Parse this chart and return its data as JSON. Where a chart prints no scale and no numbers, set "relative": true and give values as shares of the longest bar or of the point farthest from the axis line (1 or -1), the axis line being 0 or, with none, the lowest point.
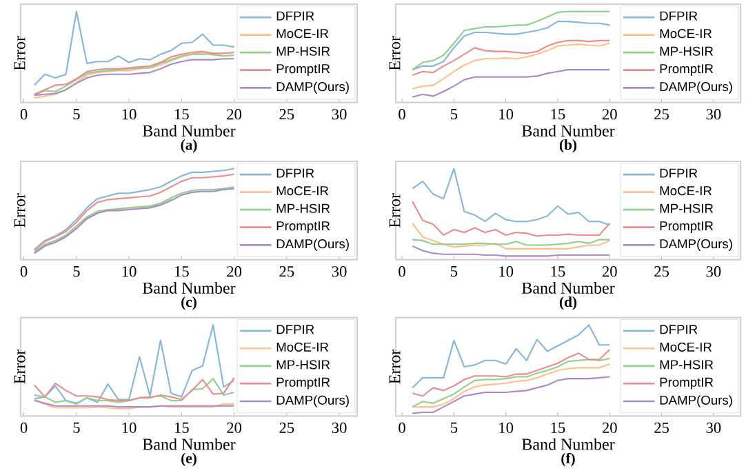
{
  "chart_data": [
    {
      "type": "line",
      "title": "(a)",
      "xlabel": "Band Number",
      "ylabel": "Error",
      "relative": true,
      "legend": "top right",
      "xlim": [
        -0.3,
        31.7
      ],
      "xticks": [
        0,
        5,
        10,
        15,
        20,
        25,
        30
      ],
      "x": [
        1,
        2,
        3,
        4,
        5,
        6,
        7,
        8,
        9,
        10,
        11,
        12,
        13,
        14,
        15,
        16,
        17,
        18,
        19,
        20
      ],
      "series": [
        {
          "name": "DFPIR",
          "color": "#86b6da",
          "values": [
            0.19,
            0.31,
            0.27,
            0.31,
            1.0,
            0.43,
            0.45,
            0.45,
            0.51,
            0.44,
            0.48,
            0.47,
            0.53,
            0.57,
            0.65,
            0.66,
            0.75,
            0.63,
            0.63,
            0.61
          ]
        },
        {
          "name": "MoCE-IR",
          "color": "#ffc08a",
          "values": [
            0.05,
            0.07,
            0.09,
            0.14,
            0.22,
            0.3,
            0.33,
            0.34,
            0.35,
            0.35,
            0.37,
            0.38,
            0.41,
            0.46,
            0.5,
            0.53,
            0.55,
            0.52,
            0.51,
            0.52
          ]
        },
        {
          "name": "MP-HSIR",
          "color": "#8fd08f",
          "values": [
            0.08,
            0.13,
            0.12,
            0.18,
            0.25,
            0.32,
            0.34,
            0.35,
            0.36,
            0.37,
            0.38,
            0.38,
            0.43,
            0.47,
            0.51,
            0.53,
            0.53,
            0.53,
            0.51,
            0.52
          ]
        },
        {
          "name": "PromptIR",
          "color": "#ec8c8c",
          "values": [
            0.09,
            0.14,
            0.19,
            0.2,
            0.26,
            0.34,
            0.36,
            0.37,
            0.37,
            0.38,
            0.39,
            0.4,
            0.44,
            0.5,
            0.53,
            0.55,
            0.56,
            0.54,
            0.54,
            0.55
          ]
        },
        {
          "name": "DAMP(Ours)",
          "color": "#a98bcb",
          "values": [
            0.08,
            0.09,
            0.1,
            0.14,
            0.21,
            0.27,
            0.3,
            0.31,
            0.31,
            0.31,
            0.32,
            0.33,
            0.37,
            0.42,
            0.45,
            0.47,
            0.47,
            0.47,
            0.48,
            0.48
          ]
        }
      ]
    },
    {
      "type": "line",
      "title": "(b)",
      "xlabel": "Band Number",
      "ylabel": "Error",
      "relative": true,
      "legend": "top right",
      "xlim": [
        -0.6,
        32.6
      ],
      "xticks": [
        0,
        5,
        10,
        15,
        20,
        25,
        30
      ],
      "x": [
        1,
        2,
        3,
        4,
        5,
        6,
        7,
        8,
        9,
        10,
        11,
        12,
        13,
        14,
        15,
        16,
        17,
        18,
        19,
        20
      ],
      "series": [
        {
          "name": "DFPIR",
          "color": "#86b6da",
          "values": [
            0.36,
            0.4,
            0.4,
            0.45,
            0.6,
            0.73,
            0.77,
            0.77,
            0.76,
            0.75,
            0.75,
            0.77,
            0.79,
            0.82,
            0.89,
            0.89,
            0.88,
            0.87,
            0.87,
            0.85
          ]
        },
        {
          "name": "MoCE-IR",
          "color": "#ffc08a",
          "values": [
            0.15,
            0.18,
            0.19,
            0.26,
            0.34,
            0.41,
            0.46,
            0.48,
            0.48,
            0.49,
            0.48,
            0.5,
            0.53,
            0.57,
            0.62,
            0.63,
            0.64,
            0.63,
            0.62,
            0.65
          ]
        },
        {
          "name": "MP-HSIR",
          "color": "#8fd08f",
          "values": [
            0.36,
            0.44,
            0.46,
            0.52,
            0.65,
            0.79,
            0.81,
            0.83,
            0.83,
            0.84,
            0.85,
            0.85,
            0.89,
            0.94,
            0.99,
            1.0,
            1.0,
            1.0,
            1.0,
            1.0
          ]
        },
        {
          "name": "PromptIR",
          "color": "#ec8c8c",
          "values": [
            0.3,
            0.34,
            0.33,
            0.4,
            0.46,
            0.53,
            0.6,
            0.57,
            0.56,
            0.56,
            0.55,
            0.54,
            0.56,
            0.62,
            0.66,
            0.68,
            0.68,
            0.67,
            0.68,
            0.68
          ]
        },
        {
          "name": "DAMP(Ours)",
          "color": "#a98bcb",
          "values": [
            0.06,
            0.09,
            0.07,
            0.12,
            0.18,
            0.25,
            0.28,
            0.28,
            0.28,
            0.28,
            0.28,
            0.28,
            0.29,
            0.32,
            0.34,
            0.36,
            0.36,
            0.36,
            0.36,
            0.36
          ]
        }
      ]
    },
    {
      "type": "line",
      "title": "(c)",
      "xlabel": "Band Number",
      "ylabel": "Error",
      "relative": true,
      "legend": "top right",
      "xlim": [
        -0.3,
        31.7
      ],
      "xticks": [
        0,
        5,
        10,
        15,
        20,
        25,
        30
      ],
      "x": [
        1,
        2,
        3,
        4,
        5,
        6,
        7,
        8,
        9,
        10,
        11,
        12,
        13,
        14,
        15,
        16,
        17,
        18,
        19,
        20
      ],
      "series": [
        {
          "name": "DFPIR",
          "color": "#86b6da",
          "values": [
            0.11,
            0.21,
            0.26,
            0.33,
            0.44,
            0.57,
            0.67,
            0.7,
            0.73,
            0.73,
            0.75,
            0.77,
            0.8,
            0.86,
            0.92,
            0.96,
            0.96,
            0.97,
            0.98,
            1.0
          ]
        },
        {
          "name": "MoCE-IR",
          "color": "#ffc08a",
          "values": [
            0.08,
            0.16,
            0.2,
            0.26,
            0.35,
            0.46,
            0.52,
            0.54,
            0.55,
            0.56,
            0.57,
            0.58,
            0.61,
            0.66,
            null,
            null,
            null,
            null,
            null,
            null
          ]
        },
        {
          "name": "MP-HSIR",
          "color": "#8fd08f",
          "values": [
            0.09,
            0.17,
            0.21,
            0.27,
            0.37,
            0.47,
            0.53,
            0.55,
            0.56,
            0.57,
            0.58,
            0.59,
            0.62,
            0.68,
            0.73,
            0.76,
            0.77,
            0.77,
            0.78,
            0.8
          ]
        },
        {
          "name": "PromptIR",
          "color": "#ec8c8c",
          "values": [
            0.11,
            0.2,
            0.25,
            0.31,
            0.41,
            0.54,
            0.63,
            0.66,
            0.67,
            0.68,
            0.69,
            0.7,
            0.74,
            0.8,
            0.86,
            0.9,
            0.9,
            0.91,
            0.92,
            0.94
          ]
        },
        {
          "name": "DAMP(Ours)",
          "color": "#a98bcb",
          "values": [
            0.07,
            0.15,
            0.19,
            0.25,
            0.34,
            0.45,
            0.51,
            0.54,
            0.54,
            0.55,
            0.56,
            0.57,
            0.6,
            0.65,
            0.71,
            0.74,
            0.75,
            0.75,
            0.77,
            0.78
          ]
        }
      ]
    },
    {
      "type": "line",
      "title": "(d)",
      "xlabel": "Band Number",
      "ylabel": "Error",
      "relative": true,
      "legend": "top right",
      "xlim": [
        -0.6,
        32.6
      ],
      "xticks": [
        0,
        5,
        10,
        15,
        20,
        25,
        30
      ],
      "x": [
        1,
        2,
        3,
        4,
        5,
        6,
        7,
        8,
        9,
        10,
        11,
        12,
        13,
        14,
        15,
        16,
        17,
        18,
        19,
        20
      ],
      "series": [
        {
          "name": "DFPIR",
          "color": "#86b6da",
          "values": [
            0.78,
            0.86,
            0.72,
            0.67,
            1.0,
            0.53,
            0.49,
            0.42,
            0.51,
            0.44,
            0.42,
            0.42,
            0.44,
            0.48,
            0.59,
            0.5,
            0.52,
            0.42,
            0.42,
            0.38
          ]
        },
        {
          "name": "MoCE-IR",
          "color": "#ffc08a",
          "values": [
            0.4,
            0.25,
            0.21,
            0.17,
            0.14,
            0.15,
            0.16,
            0.16,
            0.18,
            0.12,
            0.12,
            0.12,
            0.12,
            0.12,
            0.12,
            0.12,
            0.14,
            0.16,
            0.16,
            0.21
          ]
        },
        {
          "name": "MP-HSIR",
          "color": "#8fd08f",
          "values": [
            0.22,
            0.21,
            0.17,
            0.17,
            0.17,
            0.17,
            0.18,
            0.18,
            0.17,
            0.17,
            0.2,
            0.16,
            0.16,
            0.16,
            0.17,
            0.18,
            0.2,
            0.18,
            0.22,
            0.22
          ]
        },
        {
          "name": "PromptIR",
          "color": "#ec8c8c",
          "values": [
            0.64,
            0.43,
            0.39,
            0.27,
            0.33,
            0.3,
            0.35,
            0.3,
            0.33,
            0.27,
            0.3,
            0.29,
            0.26,
            0.27,
            0.27,
            0.28,
            0.27,
            0.27,
            0.27,
            0.4
          ]
        },
        {
          "name": "DAMP(Ours)",
          "color": "#a98bcb",
          "values": [
            0.15,
            0.1,
            0.07,
            0.06,
            0.06,
            0.06,
            0.06,
            0.05,
            0.05,
            0.04,
            0.04,
            0.04,
            0.04,
            0.04,
            0.05,
            0.05,
            0.05,
            0.05,
            0.05,
            0.05
          ]
        }
      ]
    },
    {
      "type": "line",
      "title": "(e)",
      "xlabel": "Band Number",
      "ylabel": "Error",
      "relative": true,
      "legend": "top right",
      "xlim": [
        -0.3,
        31.7
      ],
      "xticks": [
        0,
        5,
        10,
        15,
        20,
        25,
        30
      ],
      "x": [
        1,
        2,
        3,
        4,
        5,
        6,
        7,
        8,
        9,
        10,
        11,
        12,
        13,
        14,
        15,
        16,
        17,
        18,
        19,
        20
      ],
      "series": [
        {
          "name": "DFPIR",
          "color": "#86b6da",
          "values": [
            0.19,
            0.21,
            0.33,
            0.17,
            0.14,
            0.2,
            0.15,
            0.35,
            0.18,
            0.18,
            0.65,
            0.22,
            0.83,
            0.25,
            0.21,
            0.5,
            0.55,
            1.0,
            0.32,
            0.39
          ]
        },
        {
          "name": "MoCE-IR",
          "color": "#ffc08a",
          "values": [
            0.18,
            0.13,
            0.09,
            0.09,
            0.09,
            0.09,
            0.1,
            0.09,
            0.08,
            0.08,
            0.1,
            0.1,
            0.11,
            0.1,
            0.1,
            0.1,
            0.1,
            0.1,
            0.13,
            0.13
          ]
        },
        {
          "name": "MP-HSIR",
          "color": "#8fd08f",
          "values": [
            0.23,
            0.21,
            0.15,
            0.17,
            0.13,
            0.2,
            0.17,
            0.17,
            0.15,
            0.17,
            0.2,
            0.21,
            0.22,
            0.17,
            0.17,
            0.29,
            0.3,
            0.41,
            0.23,
            0.26
          ]
        },
        {
          "name": "PromptIR",
          "color": "#ec8c8c",
          "values": [
            0.34,
            0.21,
            0.36,
            0.28,
            0.22,
            0.22,
            0.21,
            0.18,
            0.17,
            0.17,
            0.2,
            0.2,
            0.23,
            0.21,
            0.18,
            0.28,
            0.4,
            0.24,
            0.25,
            0.42
          ]
        },
        {
          "name": "DAMP(Ours)",
          "color": "#a98bcb",
          "values": [
            0.17,
            0.14,
            0.11,
            0.11,
            0.11,
            0.11,
            0.11,
            0.11,
            0.1,
            0.1,
            0.1,
            0.1,
            0.11,
            0.11,
            0.11,
            0.11,
            0.11,
            0.11,
            0.11,
            0.11
          ]
        }
      ]
    },
    {
      "type": "line",
      "title": "(f)",
      "xlabel": "Band Number",
      "ylabel": "Error",
      "relative": true,
      "legend": "top right",
      "xlim": [
        -0.6,
        32.6
      ],
      "xticks": [
        0,
        5,
        10,
        15,
        20,
        25,
        30
      ],
      "x": [
        1,
        2,
        3,
        4,
        5,
        6,
        7,
        8,
        9,
        10,
        11,
        12,
        13,
        14,
        15,
        16,
        17,
        18,
        19,
        20
      ],
      "series": [
        {
          "name": "DFPIR",
          "color": "#86b6da",
          "values": [
            0.31,
            0.42,
            0.42,
            0.42,
            0.83,
            0.54,
            0.56,
            0.61,
            0.61,
            0.57,
            0.74,
            0.61,
            0.84,
            0.71,
            0.77,
            0.83,
            0.89,
            1.0,
            0.78,
            0.78
          ]
        },
        {
          "name": "MoCE-IR",
          "color": "#ffc08a",
          "values": [
            0.1,
            0.1,
            0.1,
            0.13,
            0.19,
            0.27,
            0.32,
            0.34,
            0.35,
            0.36,
            0.38,
            0.39,
            0.42,
            0.46,
            0.5,
            0.52,
            0.53,
            0.53,
            0.53,
            0.57
          ]
        },
        {
          "name": "MP-HSIR",
          "color": "#8fd08f",
          "values": [
            0.1,
            0.16,
            0.14,
            0.19,
            0.24,
            0.32,
            0.39,
            0.4,
            0.4,
            0.41,
            0.43,
            0.43,
            0.47,
            0.5,
            0.54,
            0.6,
            0.61,
            0.62,
            0.61,
            0.63
          ]
        },
        {
          "name": "PromptIR",
          "color": "#ec8c8c",
          "values": [
            0.25,
            0.22,
            0.31,
            0.28,
            0.33,
            0.4,
            0.44,
            0.44,
            0.44,
            0.43,
            0.46,
            0.46,
            0.5,
            0.54,
            0.58,
            0.64,
            0.69,
            0.62,
            0.62,
            0.73
          ]
        },
        {
          "name": "DAMP(Ours)",
          "color": "#a98bcb",
          "values": [
            0.03,
            0.04,
            0.04,
            0.1,
            0.16,
            0.22,
            0.24,
            0.26,
            0.26,
            0.26,
            0.27,
            0.28,
            0.31,
            0.34,
            0.39,
            0.41,
            0.41,
            0.41,
            0.42,
            0.43
          ]
        }
      ]
    }
  ]
}
